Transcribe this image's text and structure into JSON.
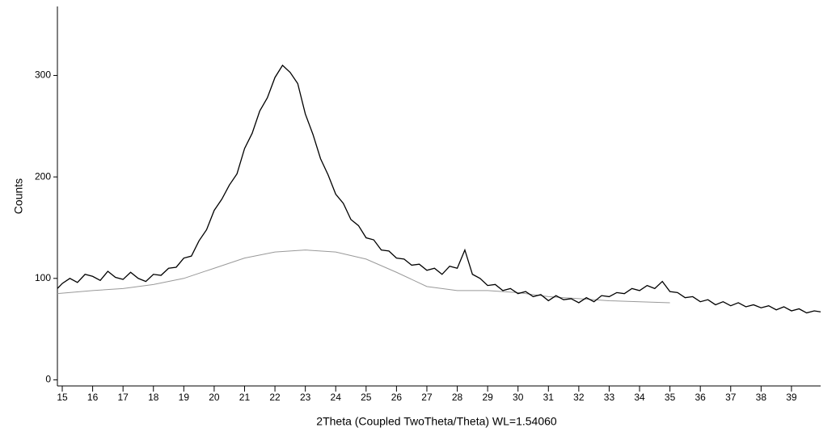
{
  "chart_data": {
    "type": "line",
    "xlabel": "2Theta (Coupled TwoTheta/Theta) WL=1.54060",
    "ylabel": "Counts",
    "xlim": [
      14.84,
      39.96
    ],
    "ylim": [
      -6,
      368
    ],
    "xticks": [
      15,
      16,
      17,
      18,
      19,
      20,
      21,
      22,
      23,
      24,
      25,
      26,
      27,
      28,
      29,
      30,
      31,
      32,
      33,
      34,
      35,
      36,
      37,
      38,
      39
    ],
    "yticks": [
      0,
      100,
      200,
      300
    ],
    "series": [
      {
        "color": "#000000",
        "x": [
          14.84,
          15,
          15.25,
          15.5,
          15.75,
          16,
          16.25,
          16.5,
          16.75,
          17,
          17.25,
          17.5,
          17.75,
          18,
          18.25,
          18.5,
          18.75,
          19,
          19.25,
          19.5,
          19.75,
          20,
          20.25,
          20.5,
          20.75,
          21,
          21.25,
          21.5,
          21.75,
          22,
          22.25,
          22.5,
          22.75,
          23,
          23.25,
          23.5,
          23.75,
          24,
          24.25,
          24.5,
          24.75,
          25,
          25.25,
          25.5,
          25.75,
          26,
          26.25,
          26.5,
          26.75,
          27,
          27.25,
          27.5,
          27.75,
          28,
          28.25,
          28.5,
          28.75,
          29,
          29.25,
          29.5,
          29.75,
          30,
          30.25,
          30.5,
          30.75,
          31,
          31.25,
          31.5,
          31.75,
          32,
          32.25,
          32.5,
          32.75,
          33,
          33.25,
          33.5,
          33.75,
          34,
          34.25,
          34.5,
          34.75,
          35,
          35.25,
          35.5,
          35.75,
          36,
          36.25,
          36.5,
          36.75,
          37,
          37.25,
          37.5,
          37.75,
          38,
          38.25,
          38.5,
          38.75,
          39,
          39.25,
          39.5,
          39.75,
          39.96
        ],
        "values": [
          90,
          95,
          100,
          96,
          104,
          102,
          98,
          107,
          101,
          99,
          106,
          100,
          97,
          104,
          103,
          110,
          111,
          120,
          122,
          137,
          148,
          167,
          178,
          192,
          203,
          228,
          243,
          265,
          278,
          298,
          310,
          303,
          292,
          262,
          242,
          218,
          202,
          183,
          174,
          158,
          152,
          140,
          138,
          128,
          127,
          120,
          119,
          113,
          114,
          108,
          110,
          104,
          112,
          110,
          128,
          104,
          100,
          93,
          94,
          88,
          90,
          85,
          87,
          82,
          84,
          78,
          83,
          79,
          80,
          76,
          81,
          77,
          83,
          82,
          86,
          85,
          90,
          88,
          93,
          90,
          97,
          87,
          86,
          81,
          82,
          77,
          79,
          74,
          77,
          73,
          76,
          72,
          74,
          71,
          73,
          69,
          72,
          68,
          70,
          66,
          68,
          67
        ]
      },
      {
        "color": "#999999",
        "x": [
          14.84,
          16,
          17,
          18,
          19,
          20,
          21,
          22,
          23,
          24,
          25,
          26,
          27,
          28,
          29,
          30,
          31,
          32,
          33,
          34,
          35
        ],
        "values": [
          85,
          88,
          90,
          94,
          100,
          110,
          120,
          126,
          128,
          126,
          119,
          106,
          92,
          88,
          88,
          86,
          82,
          80,
          78,
          77,
          76
        ]
      }
    ]
  }
}
